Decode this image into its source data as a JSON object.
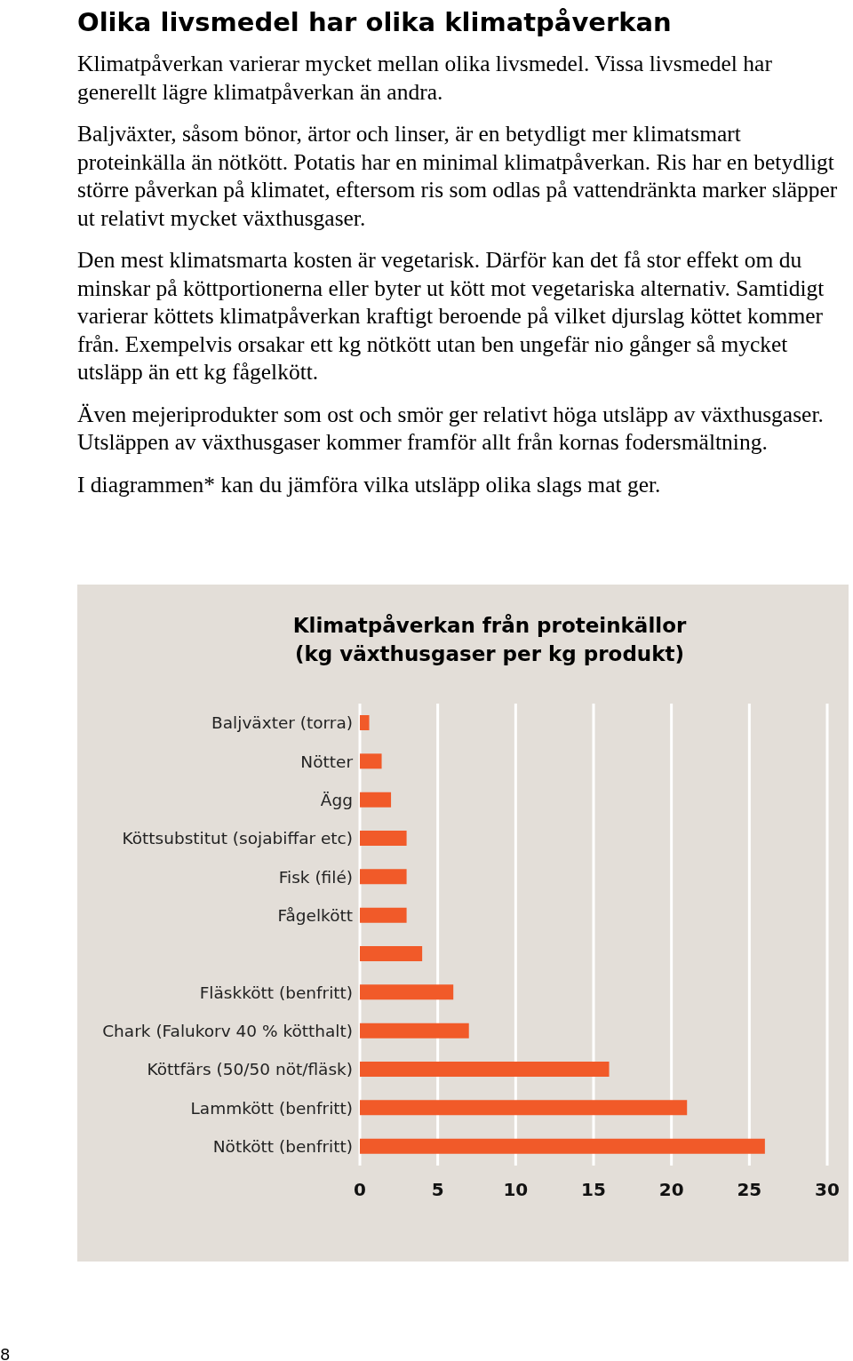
{
  "chart_data": {
    "type": "bar",
    "orientation": "horizontal",
    "title": "Olika livsmedel har olika klimatpåverkan",
    "subtitle": "Klimatpåverkan från proteinkällor\n(kg växthusgaser per kg produkt)",
    "categories": [
      "Baljväxter (torra)",
      "Nötter",
      "Ägg",
      "Köttsubstitut (sojabiffar etc)",
      "Fisk (filé)",
      "Fågelkött",
      null,
      "Fläskkött (benfritt)",
      "Chark (Falukorv 40 % kötthalt)",
      "Köttfärs (50/50 nöt/fläsk)",
      "Lammkött (benfritt)",
      "Nötkött (benfritt)"
    ],
    "values": [
      0.6,
      1.4,
      2,
      3,
      3,
      3,
      4,
      6,
      7,
      16,
      21,
      26
    ],
    "color": "#f15a29",
    "xlim": [
      0,
      30
    ],
    "xticks": [
      0,
      5,
      10,
      15,
      20,
      25,
      30
    ],
    "grid": "x",
    "annotations": [
      "Klimatpåverkan varierar mycket mellan olika livsmedel. Vissa livsmedel har generellt lägre klimatpåverkan än andra.",
      "Baljväxter, såsom bönor, ärtor och linser, är en betydligt mer klimatsmart proteinkälla än nötkött. Potatis har en minimal klimatpåverkan. Ris har en betydligt större påverkan på klimatet, eftersom ris som odlas på vattendränkta marker släpper ut relativt mycket växthusgaser.",
      "Den mest klimatsmarta kosten är vegetarisk. Därför kan det få stor effekt om du minskar på köttportionerna eller byter ut kött mot vegetariska alternativ. Samtidigt varierar köttets klimatpåverkan kraftigt beroende på vilket djurslag köttet kommer från. Exempelvis orsakar ett kg nötkött utan ben ungefär nio gånger så mycket utsläpp än ett kg fågelkött.",
      "Även mejeriprodukter som ost och smör ger relativt höga utsläpp av växthusgaser. Utsläppen av växthusgaser kommer framför allt från kornas fodersmältning.",
      "I diagrammen* kan du jämföra vilka utsläpp olika slags mat ger.",
      "8"
    ]
  }
}
